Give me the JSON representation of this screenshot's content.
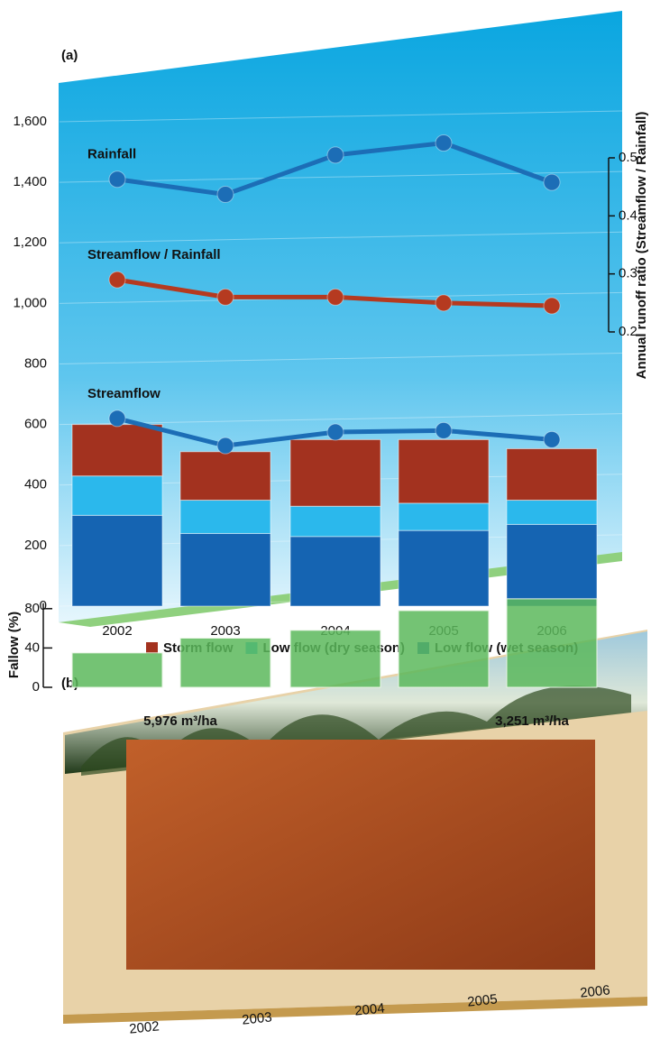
{
  "chart_data": [
    {
      "type": "bar_line",
      "label": "(a)",
      "categories": [
        "2002",
        "2003",
        "2004",
        "2005",
        "2006"
      ],
      "series": [
        {
          "name": "Storm flow",
          "type": "bar",
          "color": "#a3321f",
          "values": [
            170,
            160,
            220,
            210,
            170
          ]
        },
        {
          "name": "Low flow (dry season)",
          "type": "bar",
          "color": "#2bb8ec",
          "values": [
            130,
            110,
            100,
            90,
            80
          ]
        },
        {
          "name": "Low flow (wet season)",
          "type": "bar",
          "color": "#1564b2",
          "values": [
            300,
            240,
            230,
            250,
            270
          ]
        },
        {
          "name": "Rainfall",
          "type": "line",
          "color": "#1c6db6",
          "values": [
            1410,
            1360,
            1490,
            1530,
            1400
          ]
        },
        {
          "name": "Streamflow / Rainfall",
          "type": "line",
          "axis": "y2",
          "color": "#b53a20",
          "values": [
            0.29,
            0.26,
            0.26,
            0.25,
            0.245
          ]
        },
        {
          "name": "Streamflow",
          "type": "line",
          "color": "#1c6db6",
          "values": [
            620,
            530,
            575,
            580,
            550
          ]
        }
      ],
      "ylim": [
        0,
        1600
      ],
      "yticks": [
        0,
        200,
        400,
        600,
        800,
        {
          "value": 1000,
          "label": "1,000"
        },
        {
          "value": 1200,
          "label": "1,200"
        },
        {
          "value": 1400,
          "label": "1,400"
        },
        {
          "value": 1600,
          "label": "1,600"
        }
      ],
      "y2label": "Annual runoff ratio (Streamflow / Rainfall)",
      "y2lim": [
        0.2,
        0.5
      ],
      "y2ticks": [
        0.2,
        0.3,
        0.4,
        0.5
      ],
      "legend": "bottom"
    },
    {
      "type": "bar",
      "label": "(b)",
      "ylabel": "Fallow (%)",
      "categories": [
        "2002",
        "2003",
        "2004",
        "2005",
        "2006"
      ],
      "values": [
        35,
        50,
        58,
        78,
        90
      ],
      "color": "#5cb85c",
      "ylim": [
        0,
        100
      ],
      "yticks": [
        0,
        40,
        80
      ],
      "annotations": [
        "5,976 m³/ha",
        "3,251 m³/ha"
      ]
    }
  ]
}
